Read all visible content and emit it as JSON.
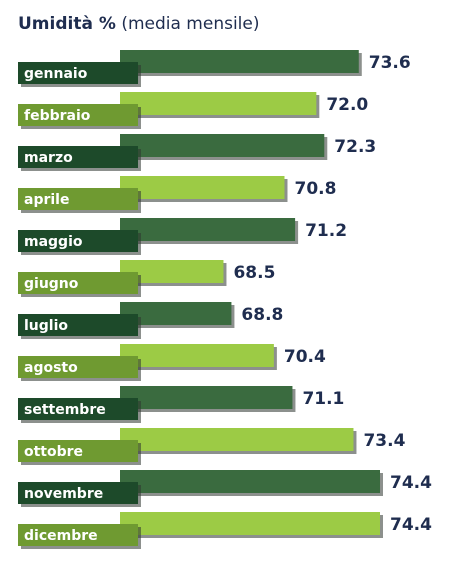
{
  "chart_data": {
    "type": "bar",
    "orientation": "horizontal",
    "title": "Umidità %",
    "subtitle": "(media mensile)",
    "categories": [
      "gennaio",
      "febbraio",
      "marzo",
      "aprile",
      "maggio",
      "giugno",
      "luglio",
      "agosto",
      "settembre",
      "ottobre",
      "novembre",
      "dicembre"
    ],
    "values": [
      73.6,
      72.0,
      72.3,
      70.8,
      71.2,
      68.5,
      68.8,
      70.4,
      71.1,
      73.4,
      74.4,
      74.4
    ],
    "value_labels": [
      "73.6",
      "72.0",
      "72.3",
      "70.8",
      "71.2",
      "68.5",
      "68.8",
      "70.4",
      "71.1",
      "73.4",
      "74.4",
      "74.4"
    ],
    "xlim": [
      64.6,
      74.4
    ],
    "grid": false,
    "legend": "none"
  },
  "colors": {
    "bar_dark": "#3a6b3f",
    "bar_light": "#9ccb45",
    "label_dark": "#1d4a2a",
    "label_light": "#6f9a31",
    "shadow": "#2d3530",
    "text": "#1f2d4f"
  }
}
